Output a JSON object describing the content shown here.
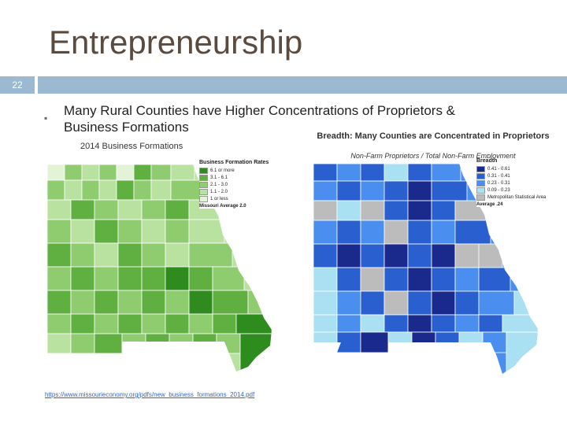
{
  "slide": {
    "title": "Entrepreneurship",
    "number": "22",
    "bullet_marker": "▪",
    "heading": "Many Rural Counties have Higher Concentrations of Proprietors & Business Formations"
  },
  "left_map": {
    "caption": "2014 Business Formations",
    "legend_title": "Business Formation Rates",
    "legend_items": [
      {
        "label": "6.1 or more",
        "color": "#2e8b1e"
      },
      {
        "label": "3.1 - 6.1",
        "color": "#5fb040"
      },
      {
        "label": "2.1 - 3.0",
        "color": "#8fcc70"
      },
      {
        "label": "1.1 - 2.0",
        "color": "#b9e19f"
      },
      {
        "label": "1 or less",
        "color": "#e3f3d6"
      }
    ],
    "legend_note": "Missouri Average 2.0",
    "link": "https://www.missourieconomy.org/pdfs/new_business_formations_2014.pdf"
  },
  "right_map": {
    "caption": "Breadth: Many Counties are Concentrated in Proprietors",
    "note": "Non-Farm Proprietors / Total Non-Farm Employment",
    "legend_title": "Breadth",
    "legend_items": [
      {
        "label": "0.41 - 0.61",
        "color": "#1a2a8c"
      },
      {
        "label": "0.31 - 0.41",
        "color": "#2a5fd0"
      },
      {
        "label": "0.23 - 0.31",
        "color": "#4a8ff0"
      },
      {
        "label": "0.09 - 0.23",
        "color": "#a9e0f2"
      },
      {
        "label": "Metropolitan Statistical Area",
        "color": "#bcbcbc"
      }
    ],
    "legend_note": "Average .24"
  }
}
